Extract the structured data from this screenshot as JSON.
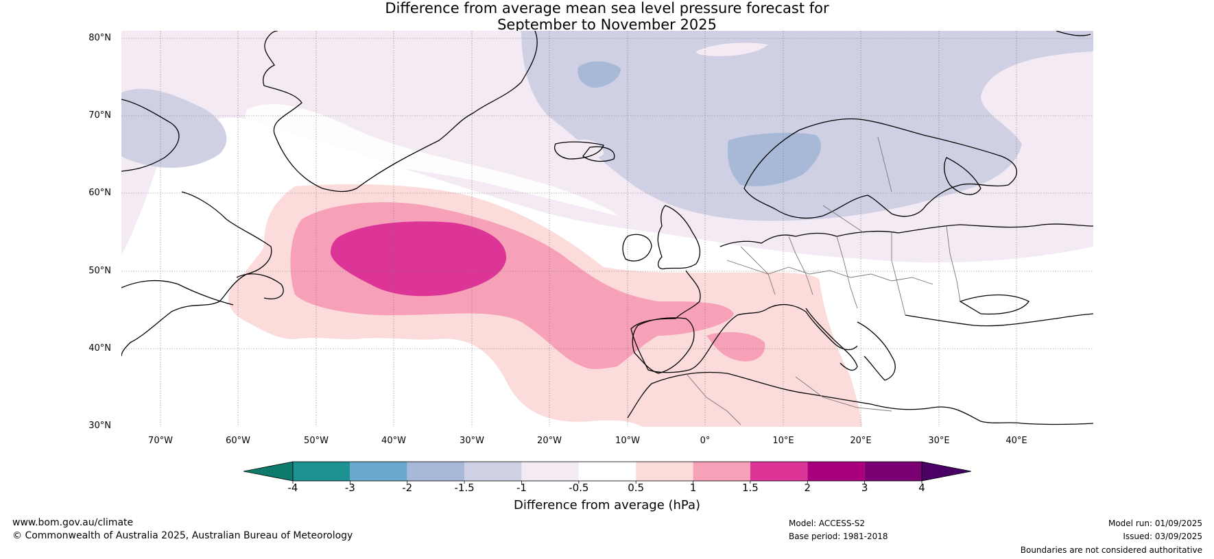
{
  "title": {
    "line1": "Difference from average mean sea level pressure forecast for",
    "line2": "September to November 2025"
  },
  "map": {
    "latitudes": [
      "80°N",
      "70°N",
      "60°N",
      "50°N",
      "40°N",
      "30°N"
    ],
    "longitudes": [
      "70°W",
      "60°W",
      "50°W",
      "40°W",
      "30°W",
      "20°W",
      "10°W",
      "0°",
      "10°E",
      "20°E",
      "30°E",
      "40°E"
    ],
    "anomaly_fields": [
      {
        "region": "Greenland, Arctic and Scandinavia",
        "range": "-1.5 to -1"
      },
      {
        "region": "Norwegian Sea and Svalbard cores",
        "range": "-2 to -1.5"
      },
      {
        "region": "North Atlantic centre",
        "range": "1.5 to 2"
      },
      {
        "region": "Western Mediterranean",
        "range": "1 to 1.5"
      },
      {
        "region": "Subtropical Atlantic and Europe",
        "range": "0.5 to 1"
      }
    ]
  },
  "colorbar": {
    "title": "Difference from average (hPa)",
    "ticks": [
      "-4",
      "-3",
      "-2",
      "-1.5",
      "-1",
      "-0.5",
      "0.5",
      "1",
      "1.5",
      "2",
      "3",
      "4"
    ],
    "colors": [
      "#1e9193",
      "#6aa8d0",
      "#a8b9d8",
      "#d0d0e4",
      "#f3eaf4",
      "#ffffff",
      "#fbdcdb",
      "#f7a1b9",
      "#dd3597",
      "#ab007d",
      "#7a0074"
    ],
    "under_color": "#0d7a6c",
    "over_color": "#4a0065"
  },
  "footer": {
    "website": "www.bom.gov.au/climate",
    "copyright": "© Commonwealth of Australia 2025, Australian Bureau of Meteorology",
    "model": "Model: ACCESS-S2",
    "base_period": "Base period: 1981-2018",
    "model_run": "Model run: 01/09/2025",
    "issued": "Issued: 03/09/2025",
    "disclaimer": "Boundaries are not considered authoritative"
  }
}
